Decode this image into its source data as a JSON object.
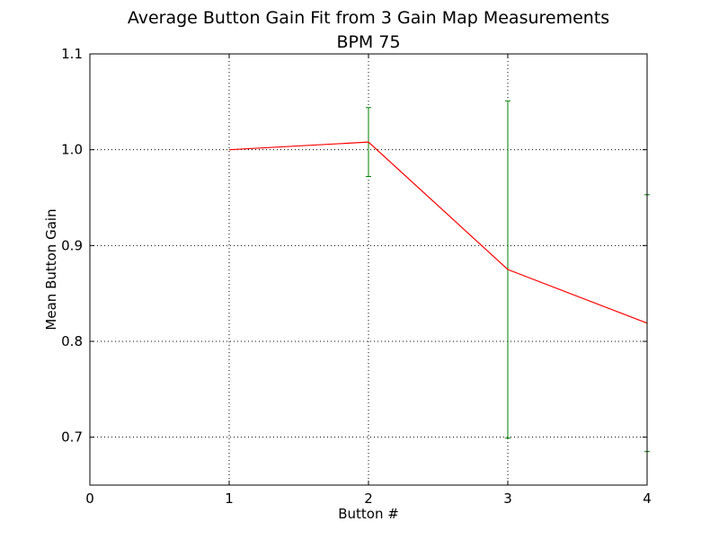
{
  "chart_data": {
    "type": "line",
    "title": "Average Button Gain Fit from 3 Gain Map Measurements",
    "subtitle": "BPM 75",
    "xlabel": "Button #",
    "ylabel": "Mean Button Gain",
    "xlim": [
      0,
      4
    ],
    "ylim": [
      0.65,
      1.1
    ],
    "xticks": [
      0,
      1,
      2,
      3,
      4
    ],
    "yticks": [
      0.7,
      0.8,
      0.9,
      1.0,
      1.1
    ],
    "xtick_labels": [
      "0",
      "1",
      "2",
      "3",
      "4"
    ],
    "ytick_labels": [
      "0.7",
      "0.8",
      "0.9",
      "1.0",
      "1.1"
    ],
    "grid": true,
    "series": [
      {
        "color": "#ff0000",
        "points": [
          {
            "x": 1,
            "y": 1.0,
            "err": 0.0
          },
          {
            "x": 2,
            "y": 1.008,
            "err": 0.036
          },
          {
            "x": 3,
            "y": 0.875,
            "err": 0.176
          },
          {
            "x": 4,
            "y": 0.819,
            "err": 0.134
          }
        ],
        "errorbar_color": "#008000"
      }
    ]
  }
}
